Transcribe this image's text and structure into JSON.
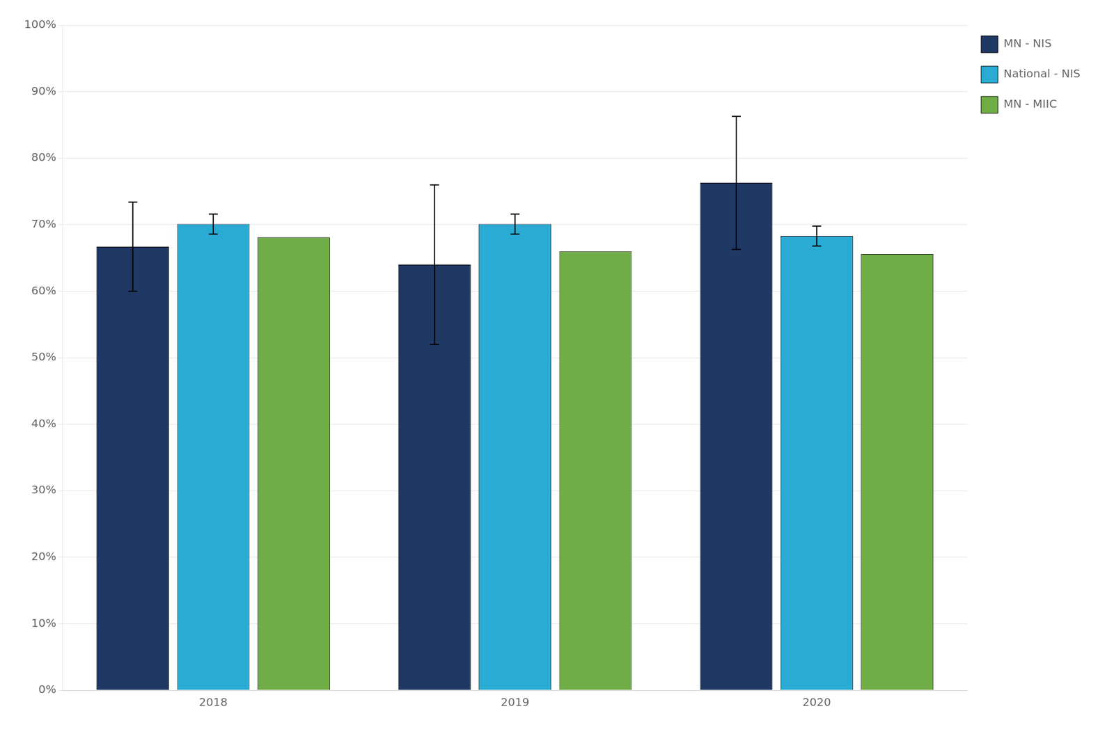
{
  "chart_data": {
    "type": "bar",
    "categories": [
      "2018",
      "2019",
      "2020"
    ],
    "series": [
      {
        "name": "MN - NIS",
        "color": "#1F3864",
        "values": [
          0.667,
          0.64,
          0.763
        ],
        "errors": [
          0.067,
          0.12,
          0.1
        ]
      },
      {
        "name": "National - NIS",
        "color": "#29ABD4",
        "values": [
          0.701,
          0.701,
          0.683
        ],
        "errors": [
          0.015,
          0.015,
          0.015
        ]
      },
      {
        "name": "MN - MIIC",
        "color": "#70AD47",
        "values": [
          0.681,
          0.66,
          0.656
        ]
      }
    ],
    "ylim": [
      0,
      1.0
    ],
    "yticks": [
      {
        "value": 0.0,
        "label": "0%"
      },
      {
        "value": 0.1,
        "label": "10%"
      },
      {
        "value": 0.2,
        "label": "20%"
      },
      {
        "value": 0.3,
        "label": "30%"
      },
      {
        "value": 0.4,
        "label": "40%"
      },
      {
        "value": 0.5,
        "label": "50%"
      },
      {
        "value": 0.6,
        "label": "60%"
      },
      {
        "value": 0.7,
        "label": "70%"
      },
      {
        "value": 0.8,
        "label": "80%"
      },
      {
        "value": 0.9,
        "label": "90%"
      },
      {
        "value": 1.0,
        "label": "100%"
      }
    ],
    "grid": "y",
    "legend": "right"
  }
}
